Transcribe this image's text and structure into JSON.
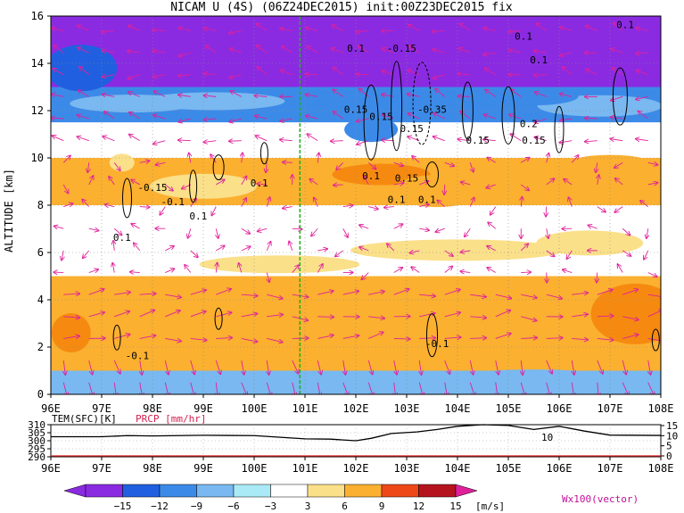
{
  "title": "NICAM U (4S) (06Z24DEC2015) init:00Z23DEC2015 fix",
  "colors": {
    "purple": "#8a2be2",
    "blue1": "#2060e0",
    "blue2": "#3c8ae8",
    "blue3": "#79b8f0",
    "cyan": "#aaeaf6",
    "white": "#ffffff",
    "yellow": "#fbe08a",
    "orange1": "#fbb030",
    "orange2": "#f68a10",
    "red1": "#ee4818",
    "red2": "#b4141e",
    "vector": "#e0209a",
    "guide": "#20b020",
    "prcp": "#e02020"
  },
  "chart_data": {
    "type": "heatmap",
    "title": "NICAM U (4S) (06Z24DEC2015) init:00Z23DEC2015 fix",
    "xlabel": "",
    "ylabel": "ALTITUDE [km]",
    "x_ticks": [
      "96E",
      "97E",
      "98E",
      "99E",
      "100E",
      "101E",
      "102E",
      "103E",
      "104E",
      "105E",
      "106E",
      "107E",
      "108E"
    ],
    "y_ticks": [
      "0",
      "2",
      "4",
      "6",
      "8",
      "10",
      "12",
      "14",
      "16"
    ],
    "xlim": [
      96,
      108
    ],
    "ylim": [
      0,
      16
    ],
    "colorbar": {
      "levels": [
        "−15",
        "−12",
        "−9",
        "−6",
        "−3",
        "3",
        "6",
        "9",
        "12",
        "15"
      ],
      "unit": "[m/s]"
    },
    "vector_label": "Wx100(vector)",
    "contour_labels": [
      "0.1",
      "-0.15",
      "-0.1",
      "0.15",
      "0.2",
      "-0.35"
    ],
    "vertical_line_lon": 100.9,
    "wind_bands": [
      {
        "alt": [
          13,
          16
        ],
        "u": -14
      },
      {
        "alt": [
          11.5,
          13
        ],
        "u": -7
      },
      {
        "alt": [
          10,
          11.5
        ],
        "u": 0
      },
      {
        "alt": [
          8,
          10
        ],
        "u": 6
      },
      {
        "alt": [
          5,
          8
        ],
        "u": 0
      },
      {
        "alt": [
          1,
          5
        ],
        "u": 7
      },
      {
        "alt": [
          0,
          1
        ],
        "u": -4
      }
    ],
    "subplot": {
      "left_label": "TEM(SFC)[K]",
      "right_label": "PRCP [mm/hr]",
      "left_ticks": [
        "290",
        "295",
        "300",
        "305",
        "310"
      ],
      "right_ticks": [
        "0",
        "5",
        "10",
        "15"
      ],
      "temperature": [
        {
          "lon": 96,
          "value": 302.5
        },
        {
          "lon": 97,
          "value": 302.5
        },
        {
          "lon": 97.5,
          "value": 303.2
        },
        {
          "lon": 98,
          "value": 303
        },
        {
          "lon": 99,
          "value": 303.4
        },
        {
          "lon": 100,
          "value": 303.2
        },
        {
          "lon": 101,
          "value": 301.2
        },
        {
          "lon": 101.5,
          "value": 301
        },
        {
          "lon": 102,
          "value": 300
        },
        {
          "lon": 102.3,
          "value": 301.5
        },
        {
          "lon": 102.7,
          "value": 304.5
        },
        {
          "lon": 103.2,
          "value": 305.5
        },
        {
          "lon": 103.6,
          "value": 307
        },
        {
          "lon": 104,
          "value": 309
        },
        {
          "lon": 104.5,
          "value": 310
        },
        {
          "lon": 105,
          "value": 309.5
        },
        {
          "lon": 105.5,
          "value": 307
        },
        {
          "lon": 106,
          "value": 309
        },
        {
          "lon": 106.5,
          "value": 306
        },
        {
          "lon": 107,
          "value": 303.5
        },
        {
          "lon": 108,
          "value": 303.3
        }
      ],
      "precip_label": "10"
    }
  }
}
